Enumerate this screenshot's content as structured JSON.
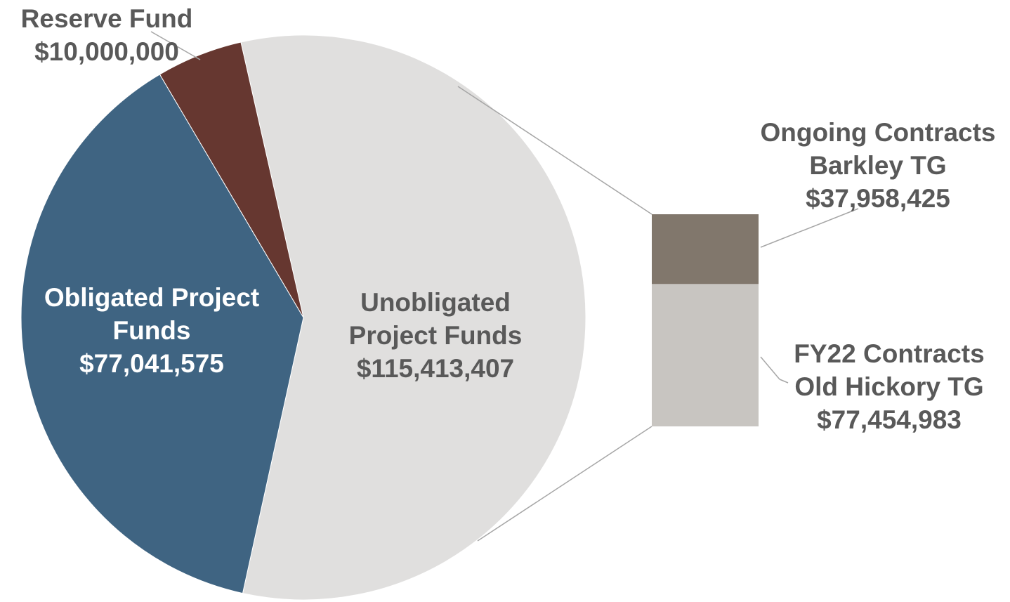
{
  "chart_data": {
    "type": "pie-of-bar",
    "slices": {
      "categories": [
        "Unobligated Project Funds",
        "Obligated Project Funds",
        "Reserve Fund"
      ],
      "values": [
        115413407,
        77041575,
        10000000
      ],
      "value_labels": [
        "$115,413,407",
        "$77,041,575",
        "$10,000,000"
      ],
      "colors": [
        "#e0dfde",
        "#3f6482",
        "#663730"
      ]
    },
    "bar": {
      "categories": [
        "Ongoing Contracts Barkley TG",
        "FY22 Contracts Old Hickory TG"
      ],
      "values": [
        37958425,
        77454983
      ],
      "value_labels": [
        "$37,958,425",
        "$77,454,983"
      ],
      "colors": [
        "#81776c",
        "#c8c5c1"
      ]
    }
  }
}
